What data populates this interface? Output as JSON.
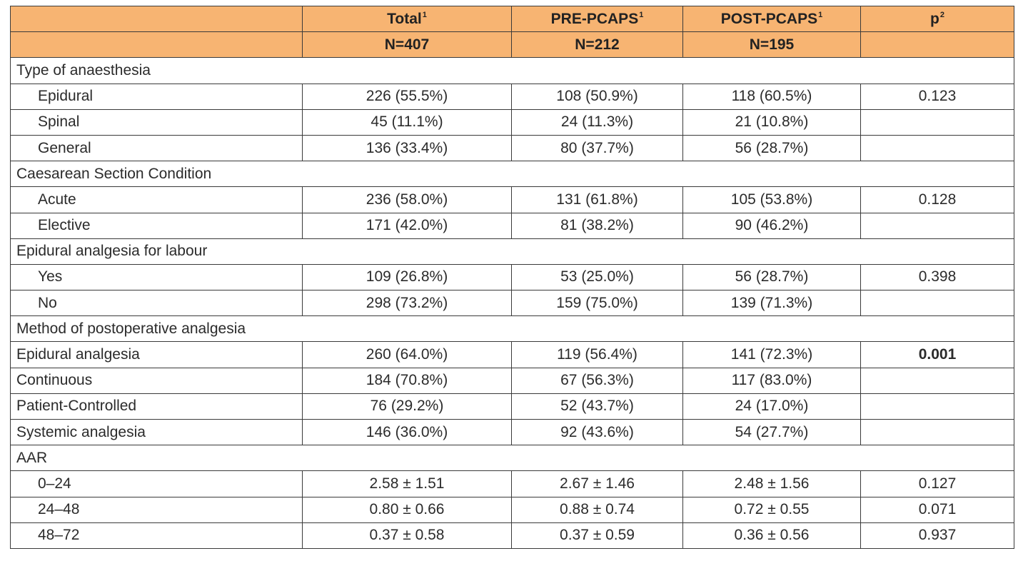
{
  "header": {
    "row1": [
      {
        "label": "",
        "sup": ""
      },
      {
        "label": "Total",
        "sup": "1"
      },
      {
        "label": "PRE-PCAPS",
        "sup": "1"
      },
      {
        "label": "POST-PCAPS",
        "sup": "1"
      },
      {
        "label": "p",
        "sup": "2"
      }
    ],
    "row2": [
      "",
      "N=407",
      "N=212",
      "N=195",
      ""
    ]
  },
  "rows": [
    {
      "type": "section",
      "label": "Type of anaesthesia"
    },
    {
      "type": "data",
      "indent": true,
      "label": "Epidural",
      "cells": [
        "226 (55.5%)",
        "108 (50.9%)",
        "118 (60.5%)",
        "0.123"
      ],
      "bold_p": false
    },
    {
      "type": "data",
      "indent": true,
      "label": "Spinal",
      "cells": [
        "45 (11.1%)",
        "24 (11.3%)",
        "21 (10.8%)",
        ""
      ],
      "bold_p": false
    },
    {
      "type": "data",
      "indent": true,
      "label": "General",
      "cells": [
        "136 (33.4%)",
        "80 (37.7%)",
        "56 (28.7%)",
        ""
      ],
      "bold_p": false
    },
    {
      "type": "section",
      "label": "Caesarean Section Condition"
    },
    {
      "type": "data",
      "indent": true,
      "label": "Acute",
      "cells": [
        "236 (58.0%)",
        "131 (61.8%)",
        "105 (53.8%)",
        "0.128"
      ],
      "bold_p": false
    },
    {
      "type": "data",
      "indent": true,
      "label": "Elective",
      "cells": [
        "171 (42.0%)",
        "81 (38.2%)",
        "90 (46.2%)",
        ""
      ],
      "bold_p": false
    },
    {
      "type": "section",
      "label": "Epidural analgesia for labour"
    },
    {
      "type": "data",
      "indent": true,
      "label": "Yes",
      "cells": [
        "109 (26.8%)",
        "53 (25.0%)",
        "56 (28.7%)",
        "0.398"
      ],
      "bold_p": false
    },
    {
      "type": "data",
      "indent": true,
      "label": "No",
      "cells": [
        "298 (73.2%)",
        "159 (75.0%)",
        "139 (71.3%)",
        ""
      ],
      "bold_p": false
    },
    {
      "type": "section",
      "label": "Method of postoperative analgesia"
    },
    {
      "type": "data",
      "indent": false,
      "label": "Epidural analgesia",
      "cells": [
        "260 (64.0%)",
        "119 (56.4%)",
        "141 (72.3%)",
        "0.001"
      ],
      "bold_p": true
    },
    {
      "type": "data",
      "indent": false,
      "label": "Continuous",
      "cells": [
        "184 (70.8%)",
        "67 (56.3%)",
        "117 (83.0%)",
        ""
      ],
      "bold_p": false
    },
    {
      "type": "data",
      "indent": false,
      "label": "Patient-Controlled",
      "cells": [
        "76 (29.2%)",
        "52 (43.7%)",
        "24 (17.0%)",
        ""
      ],
      "bold_p": false
    },
    {
      "type": "data",
      "indent": false,
      "label": "Systemic analgesia",
      "cells": [
        "146 (36.0%)",
        "92 (43.6%)",
        "54 (27.7%)",
        ""
      ],
      "bold_p": false
    },
    {
      "type": "section",
      "label": "AAR"
    },
    {
      "type": "data",
      "indent": true,
      "label": "0–24",
      "cells": [
        "2.58 ± 1.51",
        "2.67 ± 1.46",
        "2.48 ± 1.56",
        "0.127"
      ],
      "bold_p": false
    },
    {
      "type": "data",
      "indent": true,
      "label": "24–48",
      "cells": [
        "0.80 ± 0.66",
        "0.88 ± 0.74",
        "0.72 ± 0.55",
        "0.071"
      ],
      "bold_p": false
    },
    {
      "type": "data",
      "indent": true,
      "label": "48–72",
      "cells": [
        "0.37 ± 0.58",
        "0.37 ± 0.59",
        "0.36 ± 0.56",
        "0.937"
      ],
      "bold_p": false
    }
  ],
  "colors": {
    "header_bg": "#f7b472",
    "border": "#3a3a3a"
  }
}
